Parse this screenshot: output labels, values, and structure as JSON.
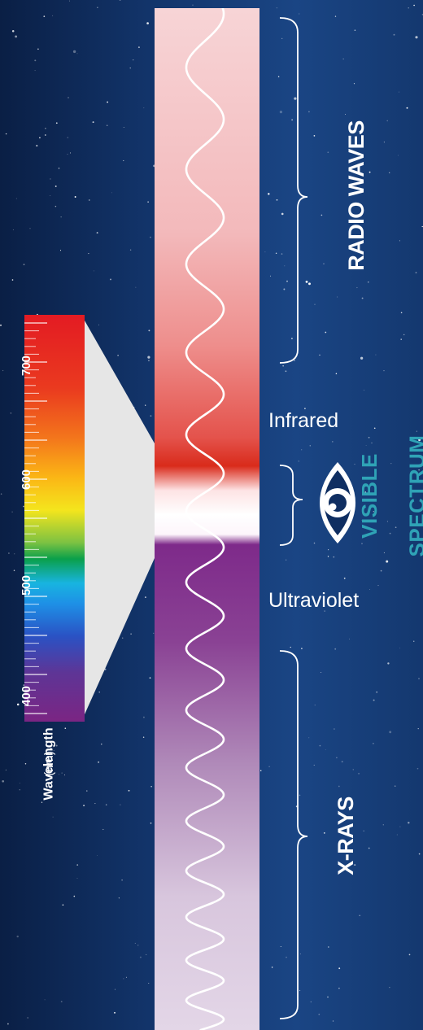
{
  "regions": {
    "radio_waves": "RADIO WAVES",
    "infrared": "Infrared",
    "visible_line1": "VISIBLE",
    "visible_line2": "SPECTRUM",
    "ultraviolet": "Ultraviolet",
    "x_rays": "X-RAYS"
  },
  "wavelength_scale": {
    "title": "Wavelength",
    "unit": "(nm)",
    "ticks": [
      "700",
      "600",
      "500",
      "400"
    ]
  },
  "colors": {
    "visible_text": "#2fa3b6",
    "label_text": "#ffffff"
  },
  "icons": {
    "eye": "eye-icon"
  }
}
